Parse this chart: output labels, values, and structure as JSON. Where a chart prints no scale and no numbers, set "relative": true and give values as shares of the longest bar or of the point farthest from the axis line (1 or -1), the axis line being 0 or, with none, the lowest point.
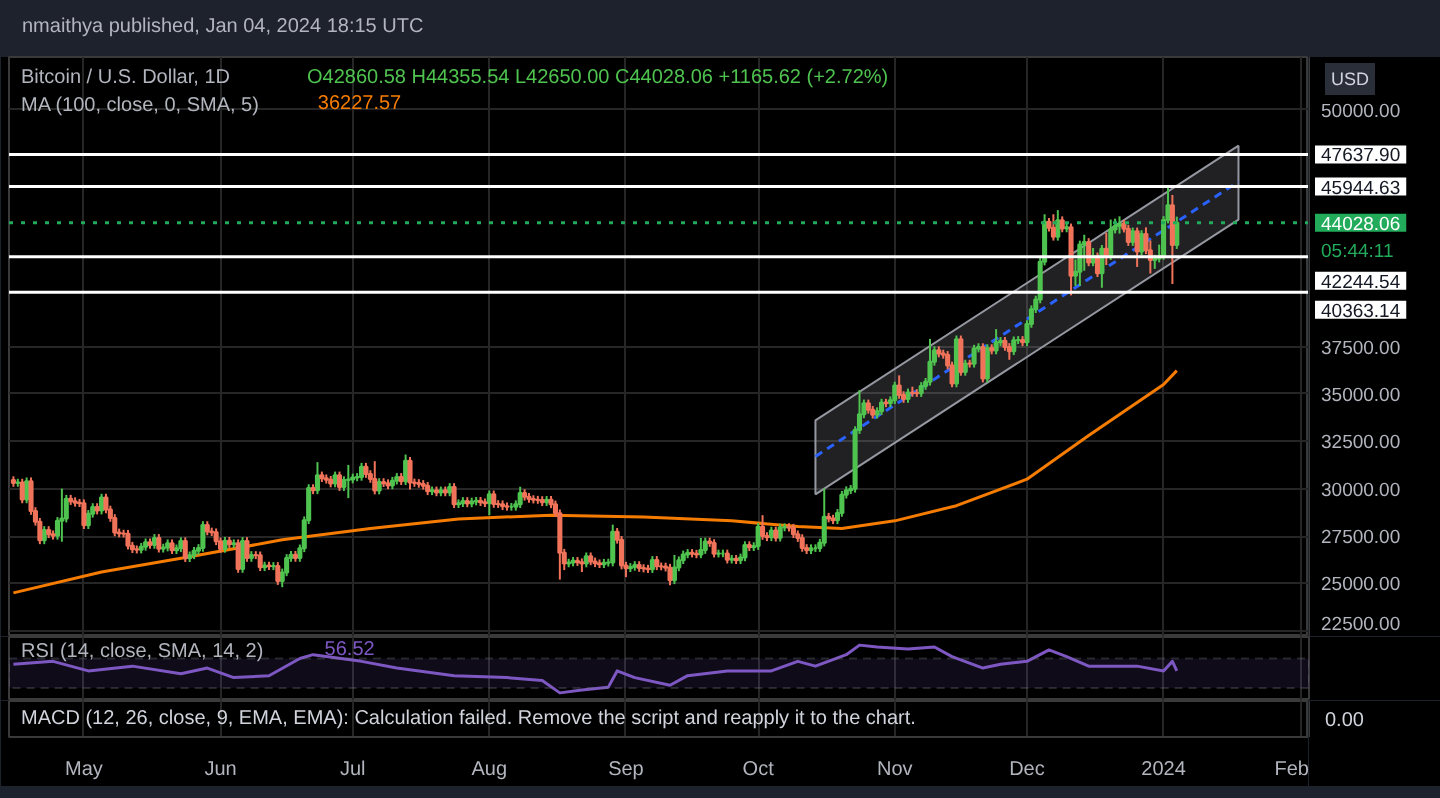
{
  "chart_data": [
    {
      "type": "candlestick",
      "title": "Bitcoin / U.S. Dollar, 1D",
      "subtitle": "nmaithya published, Jan 04, 2024 18:15 UTC",
      "x": [
        "2023-04-15",
        "2023-04-16",
        "2023-04-17",
        "2023-04-18",
        "2023-04-19",
        "2023-04-20",
        "2023-04-21",
        "2023-04-22",
        "2023-04-23",
        "2023-04-24",
        "2023-04-25",
        "2023-04-26",
        "2023-04-27",
        "2023-04-28",
        "2023-04-29",
        "2023-04-30",
        "2023-05-01",
        "2023-05-02",
        "2023-05-03",
        "2023-05-04",
        "2023-05-05",
        "2023-05-06",
        "2023-05-07",
        "2023-05-08",
        "2023-05-09",
        "2023-05-10",
        "2023-05-11",
        "2023-05-12",
        "2023-05-13",
        "2023-05-14",
        "2023-05-15",
        "2023-05-16",
        "2023-05-17",
        "2023-05-18",
        "2023-05-19",
        "2023-05-20",
        "2023-05-21",
        "2023-05-22",
        "2023-05-23",
        "2023-05-24",
        "2023-05-25",
        "2023-05-26",
        "2023-05-27",
        "2023-05-28",
        "2023-05-29",
        "2023-05-30",
        "2023-05-31",
        "2023-06-01",
        "2023-06-02",
        "2023-06-03",
        "2023-06-04",
        "2023-06-05",
        "2023-06-06",
        "2023-06-07",
        "2023-06-08",
        "2023-06-09",
        "2023-06-10",
        "2023-06-11",
        "2023-06-12",
        "2023-06-13",
        "2023-06-14",
        "2023-06-15",
        "2023-06-16",
        "2023-06-17",
        "2023-06-18",
        "2023-06-19",
        "2023-06-20",
        "2023-06-21",
        "2023-06-22",
        "2023-06-23",
        "2023-06-24",
        "2023-06-25",
        "2023-06-26",
        "2023-06-27",
        "2023-06-28",
        "2023-06-29",
        "2023-06-30",
        "2023-07-01",
        "2023-07-02",
        "2023-07-03",
        "2023-07-04",
        "2023-07-05",
        "2023-07-06",
        "2023-07-07",
        "2023-07-08",
        "2023-07-09",
        "2023-07-10",
        "2023-07-11",
        "2023-07-12",
        "2023-07-13",
        "2023-07-14",
        "2023-07-15",
        "2023-07-16",
        "2023-07-17",
        "2023-07-18",
        "2023-07-19",
        "2023-07-20",
        "2023-07-21",
        "2023-07-22",
        "2023-07-23",
        "2023-07-24",
        "2023-07-25",
        "2023-07-26",
        "2023-07-27",
        "2023-07-28",
        "2023-07-29",
        "2023-07-30",
        "2023-07-31",
        "2023-08-01",
        "2023-08-02",
        "2023-08-03",
        "2023-08-04",
        "2023-08-05",
        "2023-08-06",
        "2023-08-07",
        "2023-08-08",
        "2023-08-09",
        "2023-08-10",
        "2023-08-11",
        "2023-08-12",
        "2023-08-13",
        "2023-08-14",
        "2023-08-15",
        "2023-08-16",
        "2023-08-17",
        "2023-08-18",
        "2023-08-19",
        "2023-08-20",
        "2023-08-21",
        "2023-08-22",
        "2023-08-23",
        "2023-08-24",
        "2023-08-25",
        "2023-08-26",
        "2023-08-27",
        "2023-08-28",
        "2023-08-29",
        "2023-08-30",
        "2023-08-31",
        "2023-09-01",
        "2023-09-02",
        "2023-09-03",
        "2023-09-04",
        "2023-09-05",
        "2023-09-06",
        "2023-09-07",
        "2023-09-08",
        "2023-09-09",
        "2023-09-10",
        "2023-09-11",
        "2023-09-12",
        "2023-09-13",
        "2023-09-14",
        "2023-09-15",
        "2023-09-16",
        "2023-09-17",
        "2023-09-18",
        "2023-09-19",
        "2023-09-20",
        "2023-09-21",
        "2023-09-22",
        "2023-09-23",
        "2023-09-24",
        "2023-09-25",
        "2023-09-26",
        "2023-09-27",
        "2023-09-28",
        "2023-09-29",
        "2023-09-30",
        "2023-10-01",
        "2023-10-02",
        "2023-10-03",
        "2023-10-04",
        "2023-10-05",
        "2023-10-06",
        "2023-10-07",
        "2023-10-08",
        "2023-10-09",
        "2023-10-10",
        "2023-10-11",
        "2023-10-12",
        "2023-10-13",
        "2023-10-14",
        "2023-10-15",
        "2023-10-16",
        "2023-10-17",
        "2023-10-18",
        "2023-10-19",
        "2023-10-20",
        "2023-10-21",
        "2023-10-22",
        "2023-10-23",
        "2023-10-24",
        "2023-10-25",
        "2023-10-26",
        "2023-10-27",
        "2023-10-28",
        "2023-10-29",
        "2023-10-30",
        "2023-10-31",
        "2023-11-01",
        "2023-11-02",
        "2023-11-03",
        "2023-11-04",
        "2023-11-05",
        "2023-11-06",
        "2023-11-07",
        "2023-11-08",
        "2023-11-09",
        "2023-11-10",
        "2023-11-11",
        "2023-11-12",
        "2023-11-13",
        "2023-11-14",
        "2023-11-15",
        "2023-11-16",
        "2023-11-17",
        "2023-11-18",
        "2023-11-19",
        "2023-11-20",
        "2023-11-21",
        "2023-11-22",
        "2023-11-23",
        "2023-11-24",
        "2023-11-25",
        "2023-11-26",
        "2023-11-27",
        "2023-11-28",
        "2023-11-29",
        "2023-11-30",
        "2023-12-01",
        "2023-12-02",
        "2023-12-03",
        "2023-12-04",
        "2023-12-05",
        "2023-12-06",
        "2023-12-07",
        "2023-12-08",
        "2023-12-09",
        "2023-12-10",
        "2023-12-11",
        "2023-12-12",
        "2023-12-13",
        "2023-12-14",
        "2023-12-15",
        "2023-12-16",
        "2023-12-17",
        "2023-12-18",
        "2023-12-19",
        "2023-12-20",
        "2023-12-21",
        "2023-12-22",
        "2023-12-23",
        "2023-12-24",
        "2023-12-25",
        "2023-12-26",
        "2023-12-27",
        "2023-12-28",
        "2023-12-29",
        "2023-12-30",
        "2023-12-31",
        "2024-01-01",
        "2024-01-02",
        "2024-01-03",
        "2024-01-04"
      ],
      "ohlc": [
        [
          30450,
          30650,
          30100,
          30300
        ],
        [
          30300,
          30520,
          30100,
          30320
        ],
        [
          30320,
          30520,
          29230,
          29430
        ],
        [
          29430,
          30590,
          29230,
          30390
        ],
        [
          30390,
          30590,
          28620,
          28820
        ],
        [
          28820,
          29020,
          28050,
          28250
        ],
        [
          28250,
          28450,
          27070,
          27270
        ],
        [
          27270,
          28020,
          27070,
          27820
        ],
        [
          27820,
          28020,
          27390,
          27590
        ],
        [
          27590,
          27790,
          27310,
          27510
        ],
        [
          27510,
          28500,
          27310,
          28300
        ],
        [
          28300,
          30000,
          27200,
          28420
        ],
        [
          28420,
          29670,
          28220,
          29470
        ],
        [
          29470,
          29670,
          29140,
          29340
        ],
        [
          29340,
          29540,
          29050,
          29250
        ],
        [
          29250,
          29450,
          29030,
          29230
        ],
        [
          29230,
          29430,
          27870,
          28070
        ],
        [
          28070,
          28870,
          27870,
          28670
        ],
        [
          28670,
          29230,
          28470,
          29030
        ],
        [
          29030,
          29230,
          28640,
          28840
        ],
        [
          28840,
          29730,
          28640,
          29530
        ],
        [
          29530,
          29730,
          28700,
          28900
        ],
        [
          28900,
          29100,
          28250,
          28450
        ],
        [
          28450,
          28650,
          27490,
          27690
        ],
        [
          27690,
          27890,
          27430,
          27630
        ],
        [
          27630,
          27830,
          27420,
          27620
        ],
        [
          27620,
          27820,
          26790,
          26990
        ],
        [
          26990,
          27190,
          26600,
          26800
        ],
        [
          26800,
          27000,
          26580,
          26780
        ],
        [
          26780,
          27130,
          26580,
          26930
        ],
        [
          26930,
          27370,
          26730,
          27170
        ],
        [
          27170,
          27370,
          26830,
          27030
        ],
        [
          27030,
          27600,
          26830,
          27400
        ],
        [
          27400,
          27600,
          26630,
          26830
        ],
        [
          26830,
          27090,
          26630,
          26890
        ],
        [
          26890,
          27320,
          26690,
          27120
        ],
        [
          27120,
          27320,
          26550,
          26750
        ],
        [
          26750,
          27050,
          26550,
          26850
        ],
        [
          26850,
          27430,
          26650,
          27230
        ],
        [
          27230,
          27430,
          26130,
          26330
        ],
        [
          26330,
          26680,
          26130,
          26480
        ],
        [
          26480,
          26920,
          26280,
          26720
        ],
        [
          26720,
          27070,
          26520,
          26870
        ],
        [
          26870,
          28280,
          26670,
          28080
        ],
        [
          28080,
          28280,
          27540,
          27740
        ],
        [
          27740,
          27940,
          27500,
          27700
        ],
        [
          27700,
          27900,
          27020,
          27220
        ],
        [
          27220,
          27420,
          26620,
          26820
        ],
        [
          26820,
          27450,
          26620,
          27250
        ],
        [
          27250,
          27450,
          26870,
          27070
        ],
        [
          27070,
          27320,
          26870,
          27120
        ],
        [
          27120,
          27320,
          25560,
          25760
        ],
        [
          25760,
          27440,
          25560,
          27240
        ],
        [
          27240,
          27440,
          26140,
          26340
        ],
        [
          26340,
          26700,
          26140,
          26500
        ],
        [
          26500,
          26700,
          26280,
          26480
        ],
        [
          26480,
          26680,
          25650,
          25850
        ],
        [
          25850,
          26140,
          25650,
          25940
        ],
        [
          25940,
          26140,
          25700,
          25900
        ],
        [
          25900,
          26120,
          25700,
          25920
        ],
        [
          25920,
          26120,
          24920,
          25120
        ],
        [
          25120,
          25780,
          24800,
          25580
        ],
        [
          25580,
          26540,
          25380,
          26340
        ],
        [
          26340,
          26710,
          26140,
          26510
        ],
        [
          26510,
          26710,
          26140,
          26340
        ],
        [
          26340,
          27050,
          26140,
          26850
        ],
        [
          26850,
          28530,
          26650,
          28330
        ],
        [
          28330,
          30230,
          28130,
          30030
        ],
        [
          30030,
          30230,
          29710,
          29910
        ],
        [
          29910,
          31400,
          29710,
          30700
        ],
        [
          30700,
          30900,
          30350,
          30550
        ],
        [
          30550,
          30750,
          30270,
          30470
        ],
        [
          30470,
          30670,
          30070,
          30270
        ],
        [
          30270,
          30900,
          30070,
          30700
        ],
        [
          30700,
          30900,
          29880,
          30080
        ],
        [
          30080,
          30650,
          29880,
          30450
        ],
        [
          30450,
          31250,
          29500,
          30480
        ],
        [
          30480,
          30790,
          30280,
          30590
        ],
        [
          30590,
          30820,
          30390,
          30620
        ],
        [
          30620,
          31360,
          30420,
          31160
        ],
        [
          31160,
          31360,
          30570,
          30770
        ],
        [
          30770,
          30970,
          30310,
          30510
        ],
        [
          30510,
          31450,
          29700,
          29900
        ],
        [
          29900,
          30550,
          29700,
          30350
        ],
        [
          30350,
          30550,
          30090,
          30290
        ],
        [
          30290,
          30490,
          29970,
          30170
        ],
        [
          30170,
          30620,
          29970,
          30420
        ],
        [
          30420,
          30820,
          30220,
          30620
        ],
        [
          30620,
          30820,
          30190,
          30390
        ],
        [
          30390,
          31800,
          30190,
          31470
        ],
        [
          31470,
          31670,
          29950,
          30330
        ],
        [
          30330,
          30530,
          30100,
          30300
        ],
        [
          30300,
          30500,
          30050,
          30250
        ],
        [
          30250,
          30450,
          29950,
          30150
        ],
        [
          30150,
          30350,
          29660,
          29860
        ],
        [
          29860,
          30110,
          29660,
          29910
        ],
        [
          29910,
          30110,
          29600,
          29800
        ],
        [
          29800,
          30110,
          29600,
          29910
        ],
        [
          29910,
          30110,
          29600,
          29800
        ],
        [
          29800,
          30290,
          29600,
          30090
        ],
        [
          30090,
          30290,
          28980,
          29180
        ],
        [
          29180,
          29430,
          28980,
          29230
        ],
        [
          29230,
          29550,
          29030,
          29350
        ],
        [
          29350,
          29550,
          29020,
          29220
        ],
        [
          29220,
          29520,
          29020,
          29320
        ],
        [
          29320,
          29560,
          29120,
          29360
        ],
        [
          29360,
          29560,
          29080,
          29280
        ],
        [
          29280,
          29480,
          29030,
          29230
        ],
        [
          29230,
          29900,
          28600,
          29700
        ],
        [
          29700,
          29900,
          28990,
          29190
        ],
        [
          29190,
          29390,
          28980,
          29180
        ],
        [
          29180,
          29380,
          28870,
          29070
        ],
        [
          29070,
          29270,
          28840,
          29040
        ],
        [
          29040,
          29240,
          28840,
          29040
        ],
        [
          29040,
          29380,
          28840,
          29180
        ],
        [
          29180,
          30100,
          28980,
          29770
        ],
        [
          29770,
          29970,
          29370,
          29570
        ],
        [
          29570,
          29770,
          29250,
          29450
        ],
        [
          29450,
          29650,
          29220,
          29420
        ],
        [
          29420,
          29620,
          29200,
          29400
        ],
        [
          29400,
          29600,
          29080,
          29280
        ],
        [
          29280,
          29610,
          29080,
          29410
        ],
        [
          29410,
          29610,
          28970,
          29170
        ],
        [
          29170,
          29370,
          28500,
          28700
        ],
        [
          28700,
          28900,
          25200,
          26620
        ],
        [
          26620,
          26820,
          25700,
          26050
        ],
        [
          26050,
          26300,
          25850,
          26100
        ],
        [
          26100,
          26390,
          25900,
          26190
        ],
        [
          26190,
          26390,
          25920,
          26120
        ],
        [
          26120,
          26320,
          25600,
          26050
        ],
        [
          26050,
          26630,
          25850,
          26430
        ],
        [
          26430,
          26630,
          25960,
          26160
        ],
        [
          26160,
          26360,
          25860,
          26060
        ],
        [
          26060,
          26260,
          25810,
          26010
        ],
        [
          26010,
          26290,
          25810,
          26090
        ],
        [
          26090,
          26300,
          25890,
          26100
        ],
        [
          26100,
          28100,
          25900,
          27720
        ],
        [
          27720,
          27920,
          27100,
          27300
        ],
        [
          27300,
          27500,
          25740,
          25940
        ],
        [
          25940,
          26140,
          25330,
          25800
        ],
        [
          25800,
          26070,
          25600,
          25870
        ],
        [
          25870,
          26170,
          25670,
          25970
        ],
        [
          25970,
          26170,
          25610,
          25810
        ],
        [
          25810,
          26010,
          25580,
          25780
        ],
        [
          25780,
          25980,
          25550,
          25750
        ],
        [
          25750,
          26440,
          25550,
          26240
        ],
        [
          26240,
          26440,
          25700,
          25900
        ],
        [
          25900,
          26100,
          25690,
          25890
        ],
        [
          25890,
          26090,
          25630,
          25830
        ],
        [
          25830,
          26030,
          24900,
          25160
        ],
        [
          25160,
          26500,
          24960,
          25840
        ],
        [
          25840,
          26420,
          25640,
          26220
        ],
        [
          26220,
          26730,
          26020,
          26530
        ],
        [
          26530,
          26810,
          26330,
          26610
        ],
        [
          26610,
          26810,
          26370,
          26570
        ],
        [
          26570,
          26770,
          26330,
          26530
        ],
        [
          26530,
          27400,
          26330,
          26760
        ],
        [
          26760,
          27410,
          26560,
          27210
        ],
        [
          27210,
          27410,
          26930,
          27130
        ],
        [
          27130,
          27330,
          26370,
          26570
        ],
        [
          26570,
          26780,
          26370,
          26580
        ],
        [
          26580,
          26780,
          26380,
          26580
        ],
        [
          26580,
          26780,
          26050,
          26250
        ],
        [
          26250,
          26500,
          26050,
          26300
        ],
        [
          26300,
          26500,
          26020,
          26220
        ],
        [
          26220,
          26570,
          26020,
          26370
        ],
        [
          26370,
          27220,
          26170,
          27020
        ],
        [
          27020,
          27220,
          26710,
          26910
        ],
        [
          26910,
          27170,
          26710,
          26970
        ],
        [
          26970,
          28190,
          26770,
          27990
        ],
        [
          27990,
          28600,
          27300,
          27500
        ],
        [
          27500,
          27700,
          27230,
          27430
        ],
        [
          27430,
          27990,
          27230,
          27790
        ],
        [
          27790,
          27990,
          27210,
          27410
        ],
        [
          27410,
          28150,
          27210,
          27950
        ],
        [
          27950,
          28170,
          27750,
          27970
        ],
        [
          27970,
          28170,
          27740,
          27940
        ],
        [
          27940,
          28140,
          27390,
          27590
        ],
        [
          27590,
          27790,
          27190,
          27390
        ],
        [
          27390,
          27590,
          26670,
          26870
        ],
        [
          26870,
          27070,
          26550,
          26750
        ],
        [
          26750,
          27060,
          26550,
          26860
        ],
        [
          26860,
          27060,
          26660,
          26860
        ],
        [
          26860,
          27350,
          26660,
          27150
        ],
        [
          27150,
          30000,
          26950,
          28520
        ],
        [
          28520,
          28720,
          28220,
          28420
        ],
        [
          28420,
          28620,
          28130,
          28330
        ],
        [
          28330,
          28920,
          28130,
          28720
        ],
        [
          28720,
          29880,
          28520,
          29680
        ],
        [
          29680,
          30120,
          29480,
          29920
        ],
        [
          29920,
          30190,
          29720,
          29990
        ],
        [
          29990,
          33290,
          29790,
          33090
        ],
        [
          33090,
          35200,
          32890,
          33920
        ],
        [
          33920,
          34700,
          33720,
          34500
        ],
        [
          34500,
          34700,
          33960,
          34160
        ],
        [
          34160,
          34360,
          33700,
          33900
        ],
        [
          33900,
          34290,
          33700,
          34090
        ],
        [
          34090,
          34740,
          33890,
          34540
        ],
        [
          34540,
          34740,
          34300,
          34500
        ],
        [
          34500,
          34870,
          34300,
          34670
        ],
        [
          34670,
          35640,
          34470,
          35440
        ],
        [
          35440,
          35980,
          34740,
          34940
        ],
        [
          34940,
          35140,
          34530,
          34730
        ],
        [
          34730,
          35280,
          34530,
          35080
        ],
        [
          35080,
          35380,
          34850,
          35050
        ],
        [
          35050,
          35250,
          34840,
          35040
        ],
        [
          35040,
          35620,
          34840,
          35420
        ],
        [
          35420,
          35840,
          35220,
          35640
        ],
        [
          35640,
          37900,
          35440,
          36690
        ],
        [
          36690,
          37510,
          36490,
          37310
        ],
        [
          37310,
          37510,
          36930,
          37130
        ],
        [
          37130,
          37330,
          36860,
          37060
        ],
        [
          37060,
          37260,
          36300,
          36500
        ],
        [
          36500,
          36700,
          35350,
          35550
        ],
        [
          35550,
          38080,
          35350,
          37880
        ],
        [
          37880,
          38080,
          35960,
          36160
        ],
        [
          36160,
          36800,
          35960,
          36600
        ],
        [
          36600,
          36800,
          36390,
          36590
        ],
        [
          36590,
          37590,
          36390,
          37390
        ],
        [
          37390,
          37670,
          37190,
          37470
        ],
        [
          37470,
          37670,
          35610,
          35810
        ],
        [
          35810,
          37620,
          35610,
          37420
        ],
        [
          37420,
          37620,
          37090,
          37290
        ],
        [
          37290,
          38420,
          37090,
          37720
        ],
        [
          37720,
          38000,
          37520,
          37800
        ],
        [
          37800,
          38000,
          37280,
          37480
        ],
        [
          37480,
          37680,
          36800,
          37250
        ],
        [
          37250,
          38030,
          37050,
          37830
        ],
        [
          37830,
          38050,
          37630,
          37850
        ],
        [
          37850,
          38050,
          37520,
          37720
        ],
        [
          37720,
          38890,
          37520,
          38690
        ],
        [
          38690,
          39670,
          38490,
          39470
        ],
        [
          39470,
          40180,
          39270,
          39980
        ],
        [
          39980,
          42180,
          39780,
          41980
        ],
        [
          41980,
          44480,
          41780,
          44080
        ],
        [
          44080,
          44280,
          43570,
          43770
        ],
        [
          43770,
          44480,
          43090,
          43290
        ],
        [
          43290,
          44700,
          43090,
          44170
        ],
        [
          44170,
          44370,
          43530,
          43730
        ],
        [
          43730,
          43990,
          43530,
          43790
        ],
        [
          43790,
          43990,
          40200,
          41240
        ],
        [
          41240,
          42100,
          40700,
          41450
        ],
        [
          41450,
          43090,
          40700,
          42890
        ],
        [
          42890,
          43400,
          41500,
          43020
        ],
        [
          43020,
          43220,
          41740,
          41940
        ],
        [
          41940,
          42700,
          41740,
          42260
        ],
        [
          42260,
          42460,
          41170,
          41370
        ],
        [
          41370,
          42860,
          40600,
          42660
        ],
        [
          42660,
          43500,
          41800,
          42270
        ],
        [
          42270,
          44200,
          42070,
          43670
        ],
        [
          43670,
          44250,
          43470,
          43860
        ],
        [
          43860,
          44370,
          43460,
          43980
        ],
        [
          43980,
          44180,
          43520,
          43720
        ],
        [
          43720,
          43920,
          42810,
          43010
        ],
        [
          43010,
          43780,
          42810,
          43580
        ],
        [
          43580,
          43780,
          41700,
          42520
        ],
        [
          42520,
          43640,
          42320,
          43440
        ],
        [
          43440,
          43790,
          42380,
          42580
        ],
        [
          42580,
          43100,
          41350,
          42070
        ],
        [
          42070,
          42340,
          41600,
          42140
        ],
        [
          42140,
          42880,
          41940,
          42280
        ],
        [
          42280,
          44380,
          42080,
          44180
        ],
        [
          44180,
          45900,
          44000,
          44950
        ],
        [
          44950,
          45500,
          40800,
          42860.58
        ],
        [
          42860.58,
          44355.54,
          42650.0,
          44028.06
        ]
      ],
      "series": [
        {
          "type": "line",
          "color": "#f57c00",
          "x": [
            "2023-04-15",
            "2023-05-05",
            "2023-05-25",
            "2023-06-15",
            "2023-07-05",
            "2023-07-25",
            "2023-08-15",
            "2023-09-05",
            "2023-09-25",
            "2023-10-10",
            "2023-10-20",
            "2023-11-01",
            "2023-11-15",
            "2023-12-01",
            "2023-12-15",
            "2024-01-01",
            "2024-01-04"
          ],
          "values": [
            24500,
            25600,
            26400,
            27300,
            27900,
            28400,
            28600,
            28500,
            28300,
            28000,
            27900,
            28300,
            29100,
            30500,
            32800,
            35500,
            36227.57
          ]
        },
        {
          "type": "line",
          "color": "#2962ff",
          "line_style": "dashed",
          "x": [
            "2023-10-14",
            "2024-01-18"
          ],
          "values": [
            31700,
            46200
          ],
          "lower": [
            29700,
            44200
          ],
          "upper": [
            33600,
            48100
          ]
        }
      ],
      "ref_lines": [
        {
          "axis": "y",
          "value": 47637.9,
          "label": "47637.90",
          "color": "#ffffff"
        },
        {
          "axis": "y",
          "value": 45944.63,
          "label": "45944.63",
          "color": "#ffffff"
        },
        {
          "axis": "y",
          "value": 42244.54,
          "label": "42244.54",
          "color": "#ffffff"
        },
        {
          "axis": "y",
          "value": 40363.14,
          "label": "40363.14",
          "color": "#ffffff"
        },
        {
          "axis": "y",
          "value": 44028.06,
          "label": "44028.06",
          "color": "#22ab5a",
          "line_style": "dotted"
        }
      ],
      "annotations": [
        "O42860.58 H44355.54 L42650.00 C44028.06 +1165.62 (+2.72%)",
        "MA (100, close, 0, SMA, 5)",
        "36227.57",
        "05:44:11",
        "USD"
      ],
      "xlim": [
        "2023-04-14",
        "2024-02-03"
      ],
      "xticks": [
        {
          "value": "2023-05-01",
          "label": "May"
        },
        {
          "value": "2023-06-01",
          "label": "Jun"
        },
        {
          "value": "2023-07-01",
          "label": "Jul"
        },
        {
          "value": "2023-08-01",
          "label": "Aug"
        },
        {
          "value": "2023-09-01",
          "label": "Sep"
        },
        {
          "value": "2023-10-01",
          "label": "Oct"
        },
        {
          "value": "2023-11-01",
          "label": "Nov"
        },
        {
          "value": "2023-12-01",
          "label": "Dec"
        },
        {
          "value": "2024-01-01",
          "label": "2024"
        },
        {
          "value": "2024-02-01",
          "label": "Feb"
        }
      ],
      "ylim": [
        22170,
        52780
      ],
      "yticks": [
        {
          "value": 22500,
          "label": "22500.00"
        },
        {
          "value": 25000,
          "label": "25000.00"
        },
        {
          "value": 27500,
          "label": "27500.00"
        },
        {
          "value": 30000,
          "label": "30000.00"
        },
        {
          "value": 32500,
          "label": "32500.00"
        },
        {
          "value": 35000,
          "label": "35000.00"
        },
        {
          "value": 37500,
          "label": "37500.00"
        },
        {
          "value": 50000,
          "label": "50000.00"
        }
      ],
      "grid": true
    },
    {
      "type": "line",
      "relative": true,
      "grid": "x",
      "xlim": [
        "2023-04-14",
        "2024-02-03"
      ],
      "series": [
        {
          "color": "#7e57c2",
          "x": [
            "2023-04-15",
            "2023-04-24",
            "2023-05-02",
            "2023-05-12",
            "2023-05-23",
            "2023-05-29",
            "2023-06-04",
            "2023-06-12",
            "2023-06-19",
            "2023-06-22",
            "2023-07-03",
            "2023-07-11",
            "2023-07-24",
            "2023-08-05",
            "2023-08-13",
            "2023-08-17",
            "2023-08-22",
            "2023-08-28",
            "2023-08-30",
            "2023-09-03",
            "2023-09-11",
            "2023-09-15",
            "2023-09-24",
            "2023-10-04",
            "2023-10-10",
            "2023-10-14",
            "2023-10-21",
            "2023-10-24",
            "2023-10-28",
            "2023-11-04",
            "2023-11-10",
            "2023-11-14",
            "2023-11-21",
            "2023-11-25",
            "2023-12-01",
            "2023-12-06",
            "2023-12-10",
            "2023-12-15",
            "2023-12-26",
            "2024-01-01",
            "2024-01-03",
            "2024-01-04"
          ],
          "values": [
            0.6,
            0.66,
            0.46,
            0.56,
            0.4,
            0.52,
            0.32,
            0.36,
            0.72,
            0.8,
            0.66,
            0.52,
            0.36,
            0.32,
            0.26,
            0,
            0.06,
            0.12,
            0.46,
            0.32,
            0.16,
            0.36,
            0.46,
            0.46,
            0.66,
            0.56,
            0.8,
            1,
            0.96,
            0.92,
            0.96,
            0.76,
            0.52,
            0.6,
            0.66,
            0.9,
            0.76,
            0.56,
            0.56,
            0.46,
            0.66,
            0.46
          ]
        }
      ],
      "bands": [
        {
          "axis": "y",
          "from": 0.1,
          "to": 0.72,
          "color": "#7e57c2"
        }
      ],
      "annotations": [
        "RSI (14, close, SMA, 14, 2)",
        "56.52"
      ]
    },
    {
      "type": "other",
      "annotations": [
        "MACD (12, 26, close, 9, EMA, EMA): Calculation failed. Remove the script and reapply it to the chart.",
        "0.00"
      ]
    }
  ]
}
